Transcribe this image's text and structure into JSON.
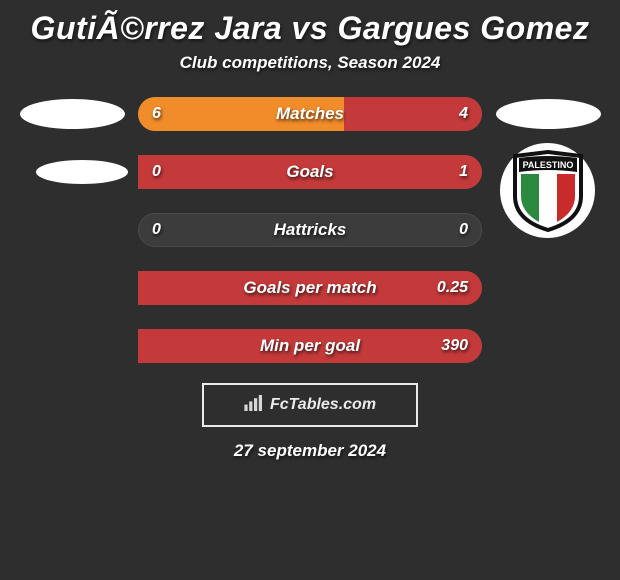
{
  "background_color": "#2e2e2e",
  "title": "GutiÃ©rrez Jara vs Gargues Gomez",
  "subtitle": "Club competitions, Season 2024",
  "left_color": "#f08c2a",
  "right_color": "#c43a3a",
  "neutral_bg": "#3c3c3c",
  "text_color": "#ffffff",
  "stats": [
    {
      "label": "Matches",
      "left_val": "6",
      "right_val": "4",
      "left_pct": 60,
      "right_pct": 40
    },
    {
      "label": "Goals",
      "left_val": "0",
      "right_val": "1",
      "left_pct": 0,
      "right_pct": 100
    },
    {
      "label": "Hattricks",
      "left_val": "0",
      "right_val": "0",
      "left_pct": 0,
      "right_pct": 0
    },
    {
      "label": "Goals per match",
      "left_val": "",
      "right_val": "0.25",
      "left_pct": 0,
      "right_pct": 100
    },
    {
      "label": "Min per goal",
      "left_val": "",
      "right_val": "390",
      "left_pct": 0,
      "right_pct": 100
    }
  ],
  "footer_brand": "FcTables.com",
  "footer_date": "27 september 2024",
  "badge": {
    "banner_text": "PALESTINO",
    "stripe_colors": [
      "#2b8a3e",
      "#ffffff",
      "#c92a2a"
    ],
    "outline_color": "#111111",
    "banner_bg": "#111111",
    "banner_text_color": "#ffffff"
  }
}
